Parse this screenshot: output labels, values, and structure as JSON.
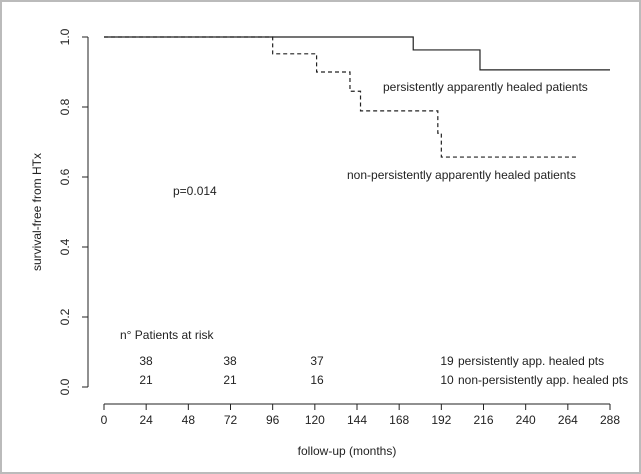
{
  "chart_data": {
    "type": "step",
    "xlabel": "follow-up (months)",
    "ylabel": "survival-free from HTx",
    "xlim": [
      0,
      288
    ],
    "ylim": [
      0,
      1
    ],
    "xticks": [
      0,
      24,
      48,
      72,
      96,
      120,
      144,
      168,
      192,
      216,
      240,
      264,
      288
    ],
    "yticks": [
      {
        "value": 0,
        "label": "0.0"
      },
      0.2,
      0.4,
      0.6,
      0.8,
      {
        "value": 1,
        "label": "1.0"
      }
    ],
    "series": [
      {
        "name": "persistently apparently healed patients",
        "color": "#222222",
        "dashed": false,
        "x": [
          0,
          176,
          214,
          288
        ],
        "values": [
          1,
          0.963,
          0.906,
          0.906
        ]
      },
      {
        "name": "non-persistently apparently healed patients",
        "color": "#222222",
        "dashed": true,
        "x": [
          0,
          96,
          121,
          140,
          146,
          190,
          192,
          269
        ],
        "values": [
          1,
          0.952,
          0.9,
          0.845,
          0.789,
          0.725,
          0.657,
          0.657
        ]
      }
    ],
    "annotation": "p=0.014",
    "at_risk": {
      "title": "n° Patients at risk",
      "rows": [
        {
          "label": "persistently app. healed pts",
          "values": [
            38,
            38,
            37,
            19
          ]
        },
        {
          "label": "non-persistently app. healed pts",
          "values": [
            21,
            21,
            16,
            10
          ]
        }
      ]
    }
  }
}
